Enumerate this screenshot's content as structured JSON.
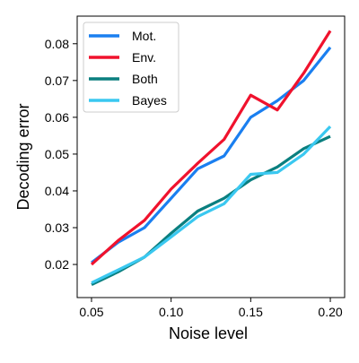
{
  "chart_data": {
    "type": "line",
    "title": "",
    "xlabel": "Noise level",
    "ylabel": "Decoding error",
    "xlim": [
      0.041,
      0.209
    ],
    "ylim": [
      0.011,
      0.0875
    ],
    "xticks": [
      0.05,
      0.1,
      0.15,
      0.2
    ],
    "xtick_labels": [
      "0.05",
      "0.10",
      "0.15",
      "0.20"
    ],
    "yticks": [
      0.02,
      0.03,
      0.04,
      0.05,
      0.06,
      0.07,
      0.08
    ],
    "ytick_labels": [
      "0.02",
      "0.03",
      "0.04",
      "0.05",
      "0.06",
      "0.07",
      "0.08"
    ],
    "grid": false,
    "legend_position": "top-left",
    "x": [
      0.05,
      0.0667,
      0.0833,
      0.1,
      0.1167,
      0.1333,
      0.15,
      0.1667,
      0.1833,
      0.2
    ],
    "series": [
      {
        "name": "Mot.",
        "color": "#1a7ff0",
        "values": [
          0.0205,
          0.026,
          0.03,
          0.038,
          0.046,
          0.0495,
          0.06,
          0.0645,
          0.07,
          0.079
        ]
      },
      {
        "name": "Env.",
        "color": "#f0122d",
        "values": [
          0.02,
          0.0265,
          0.032,
          0.0405,
          0.0475,
          0.054,
          0.066,
          0.062,
          0.072,
          0.0835
        ]
      },
      {
        "name": "Both",
        "color": "#0a7f7f",
        "values": [
          0.0145,
          0.018,
          0.022,
          0.0285,
          0.0345,
          0.038,
          0.043,
          0.0465,
          0.0515,
          0.0548
        ]
      },
      {
        "name": "Bayes",
        "color": "#3ac8f0",
        "values": [
          0.015,
          0.0185,
          0.022,
          0.0275,
          0.033,
          0.0365,
          0.0445,
          0.045,
          0.05,
          0.0575
        ]
      }
    ]
  }
}
